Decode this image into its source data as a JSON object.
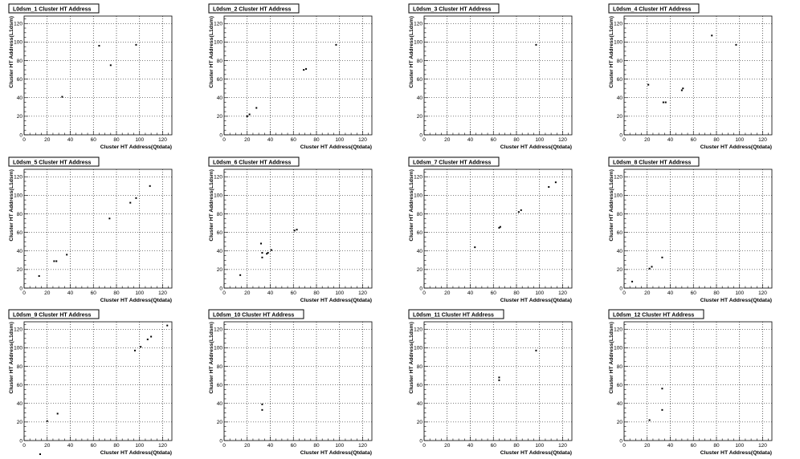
{
  "x_label": "Cluster HT Address(Qtdata)",
  "y_label": "Cluster HT Address(L1dsm)",
  "chart_data": [
    {
      "type": "scatter",
      "title": "L0dsm_1 Cluster HT Address",
      "xlim": [
        0,
        128
      ],
      "ylim": [
        0,
        128
      ],
      "x_ticks": [
        0,
        20,
        40,
        60,
        80,
        100,
        120
      ],
      "y_ticks": [
        0,
        20,
        40,
        60,
        80,
        100,
        120
      ],
      "grid": true,
      "points": [
        [
          33,
          41
        ],
        [
          65,
          96
        ],
        [
          75,
          75
        ],
        [
          97,
          97
        ]
      ]
    },
    {
      "type": "scatter",
      "title": "L0dsm_2 Cluster HT Address",
      "xlim": [
        0,
        128
      ],
      "ylim": [
        0,
        128
      ],
      "x_ticks": [
        0,
        20,
        40,
        60,
        80,
        100,
        120
      ],
      "y_ticks": [
        0,
        20,
        40,
        60,
        80,
        100,
        120
      ],
      "grid": true,
      "points": [
        [
          20,
          20
        ],
        [
          22,
          22
        ],
        [
          28,
          29
        ],
        [
          69,
          70
        ],
        [
          71,
          71
        ],
        [
          97,
          97
        ]
      ]
    },
    {
      "type": "scatter",
      "title": "L0dsm_3 Cluster HT Address",
      "xlim": [
        0,
        128
      ],
      "ylim": [
        0,
        128
      ],
      "x_ticks": [
        0,
        20,
        40,
        60,
        80,
        100,
        120
      ],
      "y_ticks": [
        0,
        20,
        40,
        60,
        80,
        100,
        120
      ],
      "grid": true,
      "points": [
        [
          97,
          97
        ]
      ]
    },
    {
      "type": "scatter",
      "title": "L0dsm_4 Cluster HT Address",
      "xlim": [
        0,
        128
      ],
      "ylim": [
        0,
        128
      ],
      "x_ticks": [
        0,
        20,
        40,
        60,
        80,
        100,
        120
      ],
      "y_ticks": [
        0,
        20,
        40,
        60,
        80,
        100,
        120
      ],
      "grid": true,
      "points": [
        [
          21,
          54
        ],
        [
          34,
          35
        ],
        [
          36,
          35
        ],
        [
          50,
          48
        ],
        [
          51,
          50
        ],
        [
          76,
          107
        ],
        [
          97,
          97
        ]
      ]
    },
    {
      "type": "scatter",
      "title": "L0dsm_5 Cluster HT Address",
      "xlim": [
        0,
        128
      ],
      "ylim": [
        0,
        128
      ],
      "x_ticks": [
        0,
        20,
        40,
        60,
        80,
        100,
        120
      ],
      "y_ticks": [
        0,
        20,
        40,
        60,
        80,
        100,
        120
      ],
      "grid": true,
      "points": [
        [
          13,
          13
        ],
        [
          26,
          29
        ],
        [
          28,
          29
        ],
        [
          37,
          36
        ],
        [
          74,
          75
        ],
        [
          92,
          92
        ],
        [
          97,
          97
        ],
        [
          109,
          110
        ]
      ]
    },
    {
      "type": "scatter",
      "title": "L0dsm_6 Cluster HT Address",
      "xlim": [
        0,
        128
      ],
      "ylim": [
        0,
        128
      ],
      "x_ticks": [
        0,
        20,
        40,
        60,
        80,
        100,
        120
      ],
      "y_ticks": [
        0,
        20,
        40,
        60,
        80,
        100,
        120
      ],
      "grid": true,
      "points": [
        [
          14,
          14
        ],
        [
          32,
          48
        ],
        [
          33,
          38
        ],
        [
          33,
          33
        ],
        [
          37,
          37
        ],
        [
          38,
          38
        ],
        [
          41,
          41
        ],
        [
          61,
          62
        ],
        [
          63,
          63
        ]
      ]
    },
    {
      "type": "scatter",
      "title": "L0dsm_7 Cluster HT Address",
      "xlim": [
        0,
        128
      ],
      "ylim": [
        0,
        128
      ],
      "x_ticks": [
        0,
        20,
        40,
        60,
        80,
        100,
        120
      ],
      "y_ticks": [
        0,
        20,
        40,
        60,
        80,
        100,
        120
      ],
      "grid": true,
      "points": [
        [
          44,
          44
        ],
        [
          65,
          65
        ],
        [
          66,
          66
        ],
        [
          82,
          82
        ],
        [
          84,
          84
        ],
        [
          108,
          109
        ],
        [
          114,
          114
        ]
      ]
    },
    {
      "type": "scatter",
      "title": "L0dsm_8 Cluster HT Address",
      "xlim": [
        0,
        128
      ],
      "ylim": [
        0,
        128
      ],
      "x_ticks": [
        0,
        20,
        40,
        60,
        80,
        100,
        120
      ],
      "y_ticks": [
        0,
        20,
        40,
        60,
        80,
        100,
        120
      ],
      "grid": true,
      "points": [
        [
          7,
          7
        ],
        [
          22,
          21
        ],
        [
          24,
          23
        ],
        [
          33,
          33
        ]
      ]
    },
    {
      "type": "scatter",
      "title": "L0dsm_9 Cluster HT Address",
      "xlim": [
        0,
        128
      ],
      "ylim": [
        0,
        128
      ],
      "x_ticks": [
        0,
        20,
        40,
        60,
        80,
        100,
        120
      ],
      "y_ticks": [
        0,
        20,
        40,
        60,
        80,
        100,
        120
      ],
      "grid": true,
      "points": [
        [
          20,
          21
        ],
        [
          29,
          29
        ],
        [
          96,
          97
        ],
        [
          101,
          101
        ],
        [
          107,
          109
        ],
        [
          110,
          112
        ],
        [
          124,
          124
        ]
      ]
    },
    {
      "type": "scatter",
      "title": "L0dsm_10 Cluster HT Address",
      "xlim": [
        0,
        128
      ],
      "ylim": [
        0,
        128
      ],
      "x_ticks": [
        0,
        20,
        40,
        60,
        80,
        100,
        120
      ],
      "y_ticks": [
        0,
        20,
        40,
        60,
        80,
        100,
        120
      ],
      "grid": true,
      "points": [
        [
          33,
          39
        ],
        [
          33,
          33
        ]
      ]
    },
    {
      "type": "scatter",
      "title": "L0dsm_11 Cluster HT Address",
      "xlim": [
        0,
        128
      ],
      "ylim": [
        0,
        128
      ],
      "x_ticks": [
        0,
        20,
        40,
        60,
        80,
        100,
        120
      ],
      "y_ticks": [
        0,
        20,
        40,
        60,
        80,
        100,
        120
      ],
      "grid": true,
      "points": [
        [
          65,
          65
        ],
        [
          65,
          68
        ],
        [
          97,
          97
        ]
      ]
    },
    {
      "type": "scatter",
      "title": "L0dsm_12 Cluster HT Address",
      "xlim": [
        0,
        128
      ],
      "ylim": [
        0,
        128
      ],
      "x_ticks": [
        0,
        20,
        40,
        60,
        80,
        100,
        120
      ],
      "y_ticks": [
        0,
        20,
        40,
        60,
        80,
        100,
        120
      ],
      "grid": true,
      "points": [
        [
          22,
          22
        ],
        [
          33,
          33
        ],
        [
          33,
          56
        ]
      ]
    }
  ]
}
